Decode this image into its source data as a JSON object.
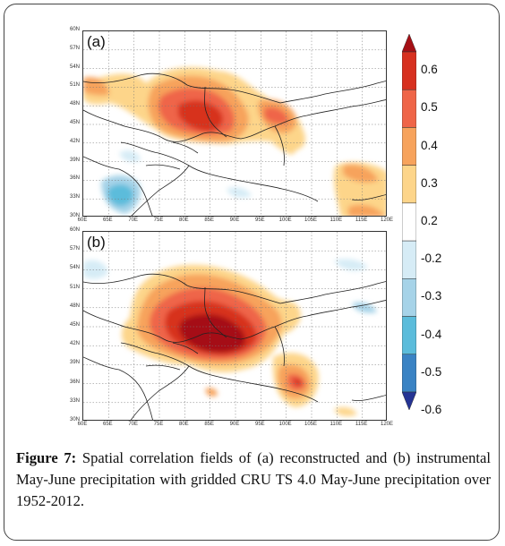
{
  "figure": {
    "caption_label": "Figure 7:",
    "caption_text": "Spatial correlation fields of (a) reconstructed and (b) instrumental May-June precipitation with gridded CRU TS 4.0 May-June precipitation over 1952-2012."
  },
  "panels": [
    {
      "label": "(a)",
      "lat_ticks": [
        "60N",
        "57N",
        "54N",
        "51N",
        "48N",
        "45N",
        "42N",
        "39N",
        "36N",
        "33N",
        "30N"
      ],
      "lon_ticks": [
        "60E",
        "65E",
        "70E",
        "75E",
        "80E",
        "85E",
        "90E",
        "95E",
        "100E",
        "105E",
        "110E",
        "115E",
        "120E"
      ]
    },
    {
      "label": "(b)",
      "lat_ticks": [
        "60N",
        "57N",
        "54N",
        "51N",
        "48N",
        "45N",
        "42N",
        "39N",
        "36N",
        "33N",
        "30N"
      ],
      "lon_ticks": [
        "60E",
        "65E",
        "70E",
        "75E",
        "80E",
        "85E",
        "90E",
        "95E",
        "100E",
        "105E",
        "110E",
        "115E",
        "120E"
      ]
    }
  ],
  "colorbar": {
    "labels": [
      "0.6",
      "0.5",
      "0.4",
      "0.3",
      "0.2",
      "-0.2",
      "-0.3",
      "-0.4",
      "-0.5",
      "-0.6"
    ],
    "colors": [
      "#a50f15",
      "#d7301f",
      "#ef6548",
      "#f7a35c",
      "#fdd58a",
      "#ffffff",
      "#d6ecf6",
      "#a6d3e8",
      "#5bbcdb",
      "#3a83c4",
      "#253494"
    ]
  },
  "chart_data": [
    {
      "type": "heatmap",
      "title": "(a)",
      "x_range": [
        60,
        120
      ],
      "y_range": [
        30,
        60
      ],
      "xlabel": "",
      "ylabel": "",
      "note": "correlation field; approximate anomaly centers in lon/lat",
      "features": [
        {
          "lon": 85,
          "lat": 45,
          "value": 0.6
        },
        {
          "lon": 82,
          "lat": 46,
          "value": 0.5
        },
        {
          "lon": 96,
          "lat": 45,
          "value": 0.4
        },
        {
          "lon": 63,
          "lat": 50,
          "value": 0.3
        },
        {
          "lon": 112,
          "lat": 34,
          "value": 0.3
        },
        {
          "lon": 70,
          "lat": 33,
          "value": -0.5
        }
      ]
    },
    {
      "type": "heatmap",
      "title": "(b)",
      "x_range": [
        60,
        120
      ],
      "y_range": [
        30,
        60
      ],
      "xlabel": "",
      "ylabel": "",
      "note": "correlation field; approximate anomaly centers in lon/lat",
      "features": [
        {
          "lon": 85,
          "lat": 44,
          "value": 0.6
        },
        {
          "lon": 82,
          "lat": 46,
          "value": 0.5
        },
        {
          "lon": 102,
          "lat": 36,
          "value": 0.5
        },
        {
          "lon": 96,
          "lat": 46,
          "value": 0.3
        },
        {
          "lon": 62,
          "lat": 50,
          "value": -0.2
        }
      ]
    }
  ]
}
